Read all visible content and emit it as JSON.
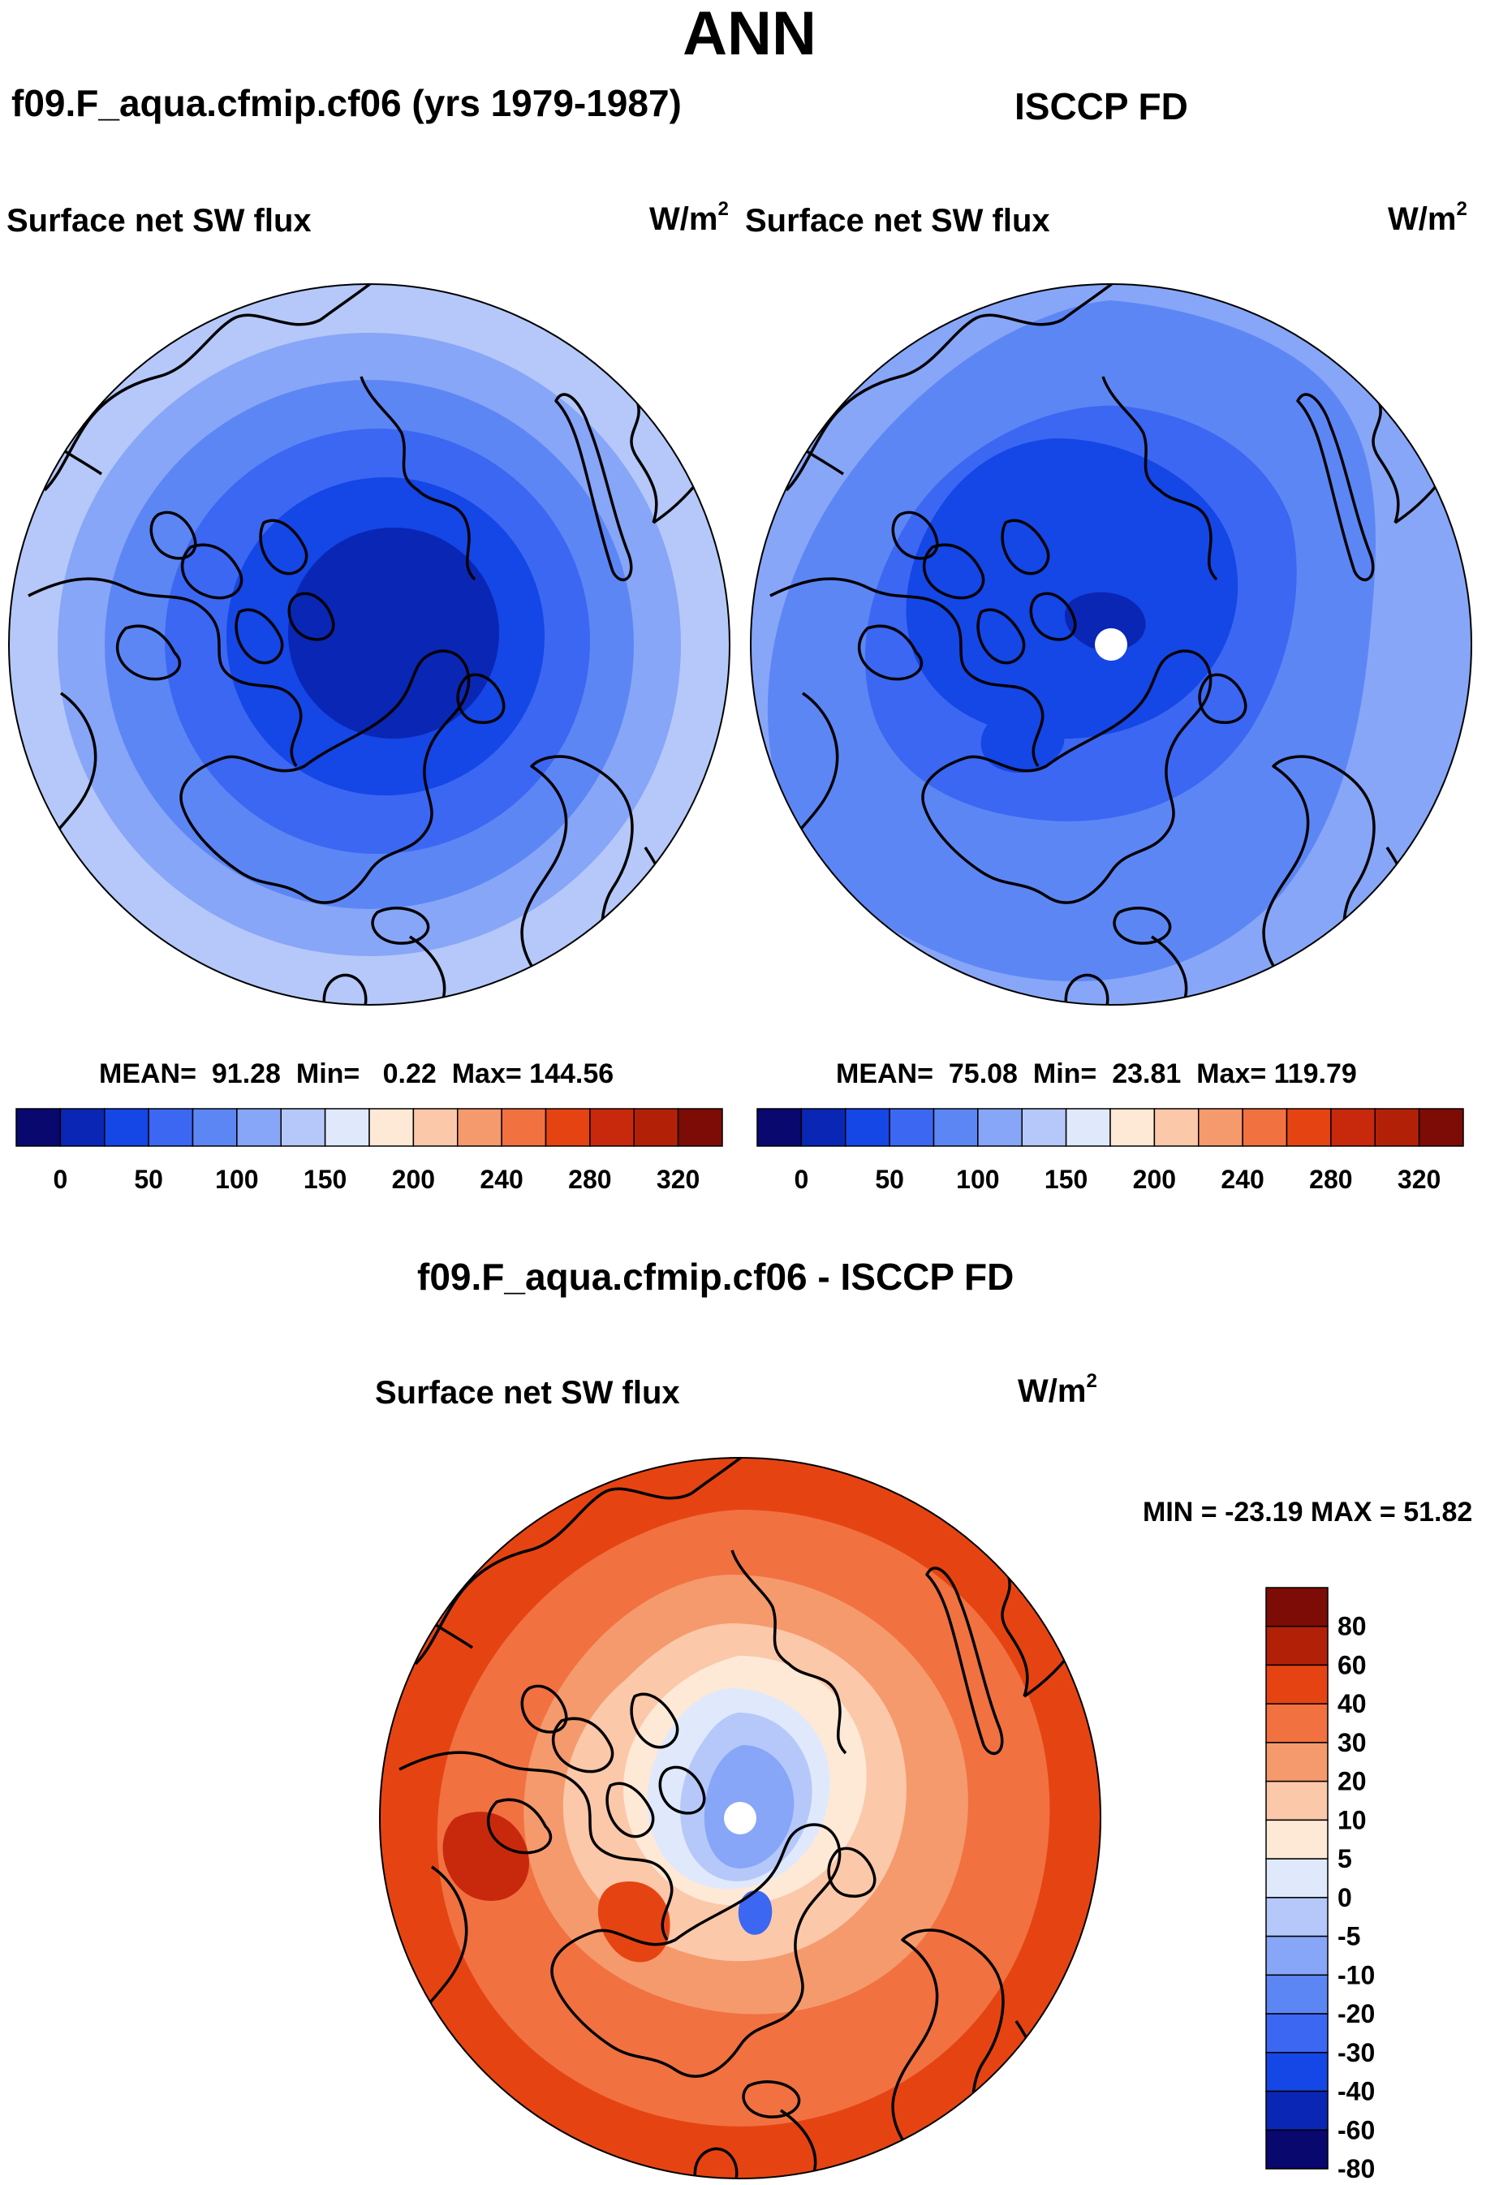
{
  "main_title": "ANN",
  "panels": {
    "model": {
      "title": "f09.F_aqua.cfmip.cf06 (yrs 1979-1987)",
      "field": "Surface net SW flux",
      "units": "W/m",
      "units_exp": "2",
      "stats": {
        "mean_label": "MEAN=",
        "mean": "91.28",
        "min_label": "Min=",
        "min": "0.22",
        "max_label": "Max=",
        "max": "144.56"
      }
    },
    "obs": {
      "title": "ISCCP FD",
      "field": "Surface net SW flux",
      "units": "W/m",
      "units_exp": "2",
      "stats": {
        "mean_label": "MEAN=",
        "mean": "75.08",
        "min_label": "Min=",
        "min": "23.81",
        "max_label": "Max=",
        "max": "119.79"
      }
    },
    "diff": {
      "title": "f09.F_aqua.cfmip.cf06 - ISCCP FD",
      "field": "Surface net SW flux",
      "units": "W/m",
      "units_exp": "2",
      "stats_text": "MIN = -23.19 MAX =  51.82"
    }
  },
  "colorbars": {
    "absolute": {
      "colors": [
        "#08086e",
        "#0a26b4",
        "#1546e6",
        "#3b67f2",
        "#5d86f5",
        "#88a6f7",
        "#b5c8f9",
        "#dfe9fb",
        "#fde9d6",
        "#fbc8aa",
        "#f59a6c",
        "#f17141",
        "#e54412",
        "#c8290c",
        "#b32008",
        "#7c0c05"
      ],
      "tick_labels": [
        "0",
        "50",
        "100",
        "150",
        "200",
        "240",
        "280",
        "320"
      ]
    },
    "difference": {
      "colors": [
        "#7c0c05",
        "#b32008",
        "#e54412",
        "#f17141",
        "#f59a6c",
        "#fbc8aa",
        "#fde9d6",
        "#dfe9fb",
        "#b5c8f9",
        "#88a6f7",
        "#5d86f5",
        "#3b67f2",
        "#1546e6",
        "#0a26b4",
        "#08086e"
      ],
      "tick_labels": [
        "80",
        "60",
        "40",
        "30",
        "20",
        "10",
        "5",
        "0",
        "-5",
        "-10",
        "-20",
        "-30",
        "-40",
        "-60",
        "-80"
      ]
    }
  }
}
